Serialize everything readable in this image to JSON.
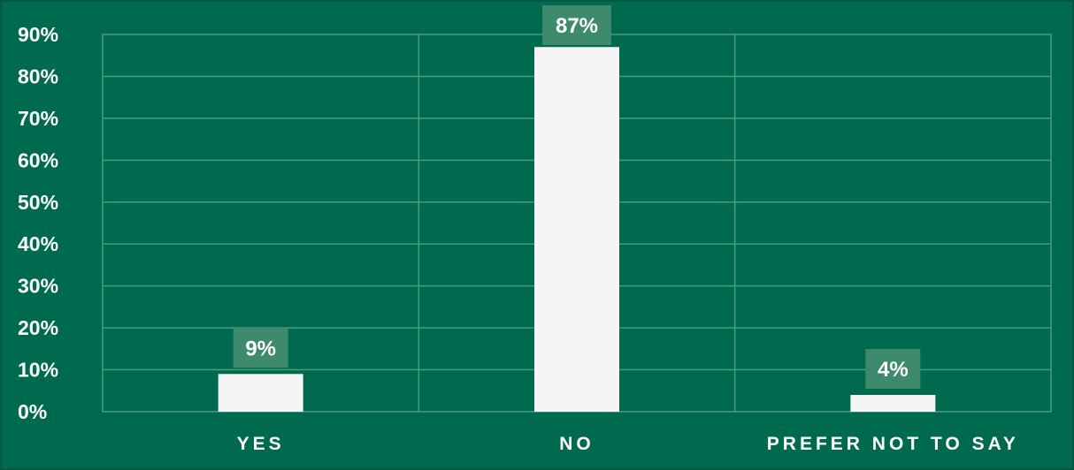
{
  "chart_data": {
    "type": "bar",
    "categories": [
      "YES",
      "NO",
      "PREFER NOT TO SAY"
    ],
    "values": [
      9,
      87,
      4
    ],
    "value_labels": [
      "9%",
      "87%",
      "4%"
    ],
    "y_tick_labels": [
      "0%",
      "10%",
      "20%",
      "30%",
      "40%",
      "50%",
      "60%",
      "70%",
      "80%",
      "90%"
    ],
    "ylim": [
      0,
      90
    ],
    "y_tick_step": 10,
    "grid": true,
    "colors": {
      "background": "#006a4e",
      "bar": "#f5f5f5",
      "grid": "#4a9a80",
      "label_box": "#3d8a6c",
      "text": "#ffffff"
    }
  }
}
